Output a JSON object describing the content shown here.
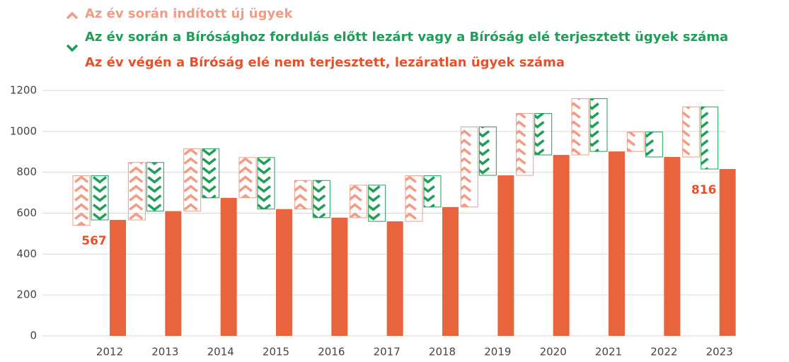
{
  "chart_data": {
    "type": "waterfall",
    "legend": [
      "Az év során indított új ügyek",
      "Az év során a Bírósághoz fordulás előtt lezárt vagy a Bíróság elé terjesztett ügyek száma",
      "Az év végén a Bíróság elé nem terjesztett, lezáratlan ügyek száma"
    ],
    "categories": [
      "2012",
      "2013",
      "2014",
      "2015",
      "2016",
      "2017",
      "2018",
      "2019",
      "2020",
      "2021",
      "2022",
      "2023"
    ],
    "start": 540,
    "series": [
      {
        "name": "Az év során indított új ügyek",
        "color": "#f29b85",
        "values": [
          243,
          281,
          305,
          197,
          140,
          159,
          223,
          392,
          303,
          275,
          95,
          245
        ]
      },
      {
        "name": "Az év során a Bírósághoz fordulás előtt lezárt vagy a Bíróság elé terjesztett ügyek száma",
        "color": "#1f9e58",
        "values": [
          216,
          238,
          240,
          252,
          182,
          177,
          153,
          237,
          203,
          258,
          122,
          304
        ]
      },
      {
        "name": "Az év végén a Bíróság elé nem terjesztett, lezáratlan ügyek száma",
        "color": "#e8643c",
        "values": [
          567,
          610,
          675,
          620,
          578,
          560,
          630,
          785,
          885,
          902,
          875,
          816
        ],
        "value_labels": [
          "567",
          null,
          null,
          null,
          null,
          null,
          null,
          null,
          null,
          null,
          null,
          "816"
        ]
      }
    ],
    "ylim": [
      0,
      1200
    ],
    "yticks": [
      0,
      200,
      400,
      600,
      800,
      1000,
      1200
    ],
    "grid": true
  }
}
